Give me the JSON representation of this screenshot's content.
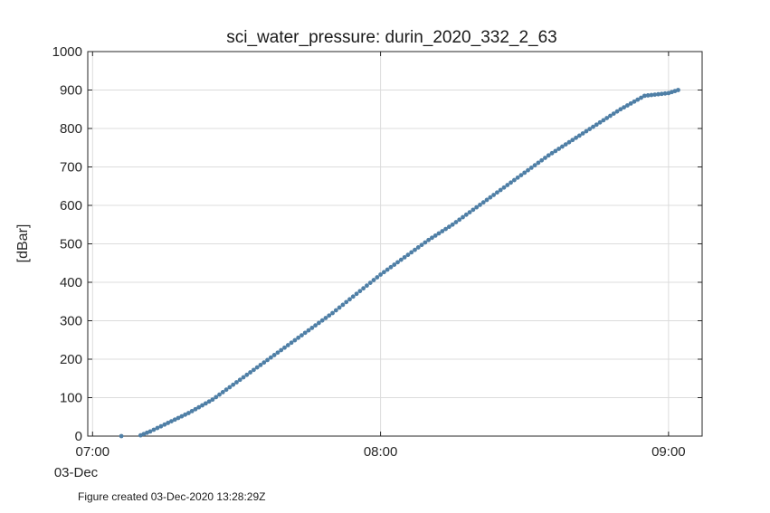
{
  "chart_data": {
    "type": "scatter",
    "title": "sci_water_pressure: durin_2020_332_2_63",
    "xlabel": "",
    "ylabel": "[dBar]",
    "ylim": [
      0,
      1000
    ],
    "yticks": [
      0,
      100,
      200,
      300,
      400,
      500,
      600,
      700,
      800,
      900,
      1000
    ],
    "xlim": [
      "06:59",
      "09:07"
    ],
    "xticks": [
      {
        "time": "07:00",
        "label": "07:00"
      },
      {
        "time": "08:00",
        "label": "08:00"
      },
      {
        "time": "09:00",
        "label": "09:00"
      }
    ],
    "date_label": "03-Dec",
    "grid": true,
    "marker_color": "#4f7fa6",
    "series": [
      {
        "x": [
          "07:06",
          "07:10",
          "07:12",
          "07:15",
          "07:20",
          "07:25",
          "07:30",
          "07:35",
          "07:40",
          "07:45",
          "07:50",
          "07:55",
          "08:00",
          "08:05",
          "08:10",
          "08:15",
          "08:20",
          "08:25",
          "08:30",
          "08:35",
          "08:40",
          "08:45",
          "08:50",
          "08:55",
          "09:00",
          "09:02"
        ],
        "y": [
          0,
          2,
          12,
          30,
          60,
          95,
          140,
          185,
          230,
          275,
          320,
          370,
          420,
          465,
          510,
          550,
          595,
          640,
          685,
          730,
          770,
          810,
          850,
          885,
          892,
          900
        ]
      }
    ]
  },
  "footer": "Figure created 03-Dec-2020 13:28:29Z"
}
